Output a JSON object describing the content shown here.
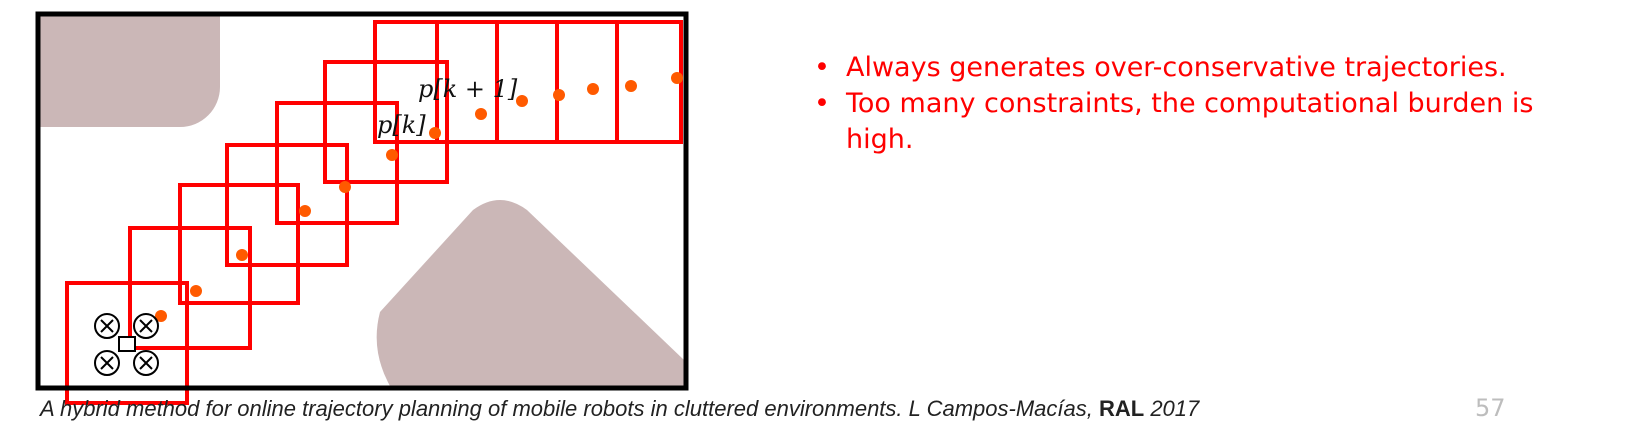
{
  "figure": {
    "labels": {
      "pk": "p[k]",
      "pk1": "p[k + 1]"
    },
    "colors": {
      "border": "#000000",
      "obstacle": "#cbb7b7",
      "corridor": "#ff0000",
      "waypoint": "#ff5a00",
      "drone": "#000000"
    },
    "icons": [
      "quadrotor-icon"
    ]
  },
  "bullets": [
    "Always generates over-conservative trajectories.",
    "Too many constraints, the computational burden is high."
  ],
  "citation": {
    "text": "A hybrid method for online trajectory planning of mobile robots in cluttered environments. L Campos-Macías, ",
    "venue": "RAL",
    "year": " 2017"
  },
  "page_number": "57"
}
